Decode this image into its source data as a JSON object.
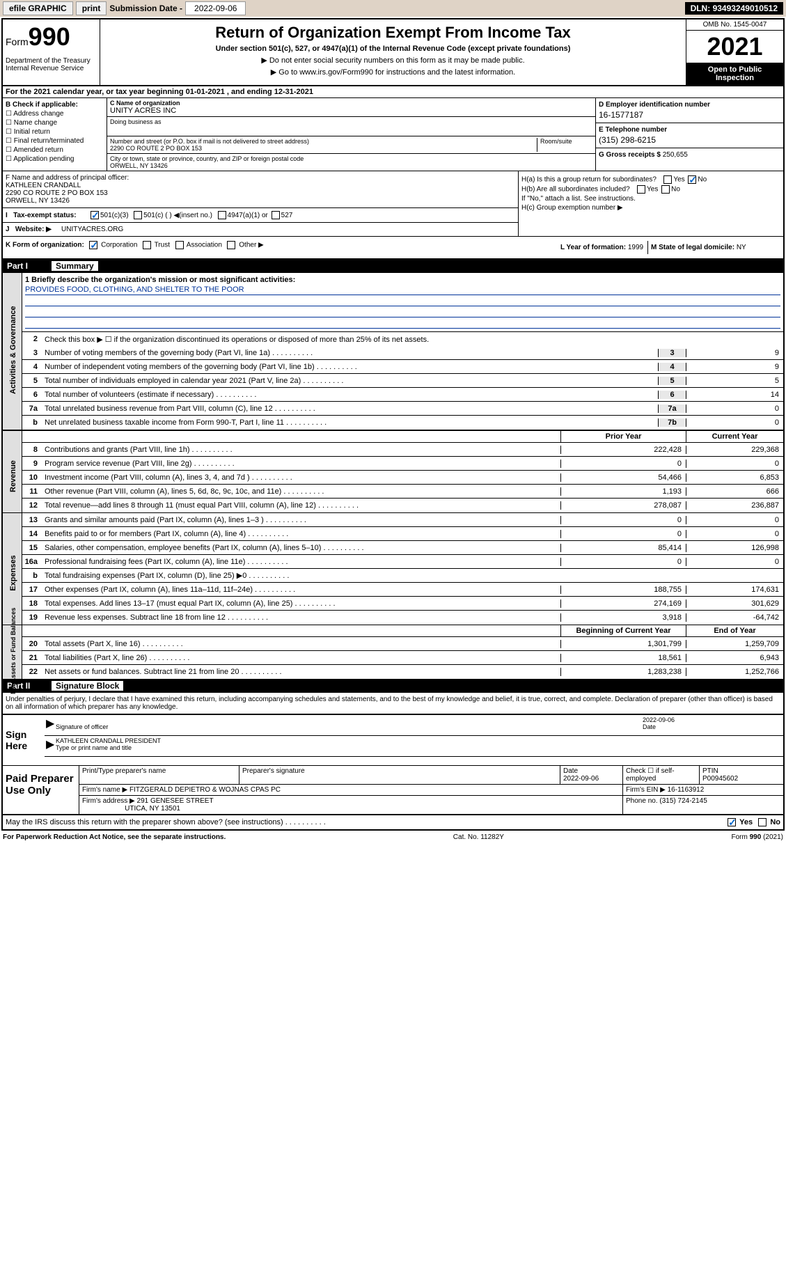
{
  "topbar": {
    "efile": "efile GRAPHIC",
    "print": "print",
    "sub_label": "Submission Date - ",
    "sub_date": "2022-09-06",
    "dln_label": "DLN: ",
    "dln": "93493249010512"
  },
  "header": {
    "form": "Form",
    "form_num": "990",
    "dept": "Department of the Treasury\nInternal Revenue Service",
    "title": "Return of Organization Exempt From Income Tax",
    "sub1": "Under section 501(c), 527, or 4947(a)(1) of the Internal Revenue Code (except private foundations)",
    "sub2": "▶ Do not enter social security numbers on this form as it may be made public.",
    "sub3": "▶ Go to www.irs.gov/Form990 for instructions and the latest information.",
    "omb": "OMB No. 1545-0047",
    "year": "2021",
    "open": "Open to Public Inspection"
  },
  "sectionA": "For the 2021 calendar year, or tax year beginning 01-01-2021    , and ending 12-31-2021",
  "blockB": {
    "label": "B Check if applicable:",
    "opts": [
      "Address change",
      "Name change",
      "Initial return",
      "Final return/terminated",
      "Amended return",
      "Application pending"
    ]
  },
  "blockC": {
    "name_label": "C Name of organization",
    "name": "UNITY ACRES INC",
    "dba_label": "Doing business as",
    "street_label": "Number and street (or P.O. box if mail is not delivered to street address)",
    "street": "2290 CO ROUTE 2 PO BOX 153",
    "room_label": "Room/suite",
    "city_label": "City or town, state or province, country, and ZIP or foreign postal code",
    "city": "ORWELL, NY  13426"
  },
  "blockD": {
    "ein_label": "D Employer identification number",
    "ein": "16-1577187",
    "phone_label": "E Telephone number",
    "phone": "(315) 298-6215",
    "gross_label": "G Gross receipts $",
    "gross": "250,655"
  },
  "blockF": {
    "label": "F  Name and address of principal officer:",
    "name": "KATHLEEN CRANDALL",
    "addr1": "2290 CO ROUTE 2 PO BOX 153",
    "addr2": "ORWELL, NY  13426"
  },
  "blockH": {
    "a_label": "H(a)  Is this a group return for subordinates?",
    "b_label": "H(b)  Are all subordinates included?",
    "note": "If \"No,\" attach a list. See instructions.",
    "c_label": "H(c)  Group exemption number ▶"
  },
  "blockI": {
    "label": "Tax-exempt status:",
    "opts": [
      "501(c)(3)",
      "501(c) (  ) ◀(insert no.)",
      "4947(a)(1) or",
      "527"
    ]
  },
  "blockJ": {
    "label": "Website: ▶",
    "val": "UNITYACRES.ORG"
  },
  "blockK": {
    "label": "K Form of organization:",
    "opts": [
      "Corporation",
      "Trust",
      "Association",
      "Other ▶"
    ]
  },
  "blockL": {
    "label": "L Year of formation:",
    "val": "1999"
  },
  "blockM": {
    "label": "M State of legal domicile:",
    "val": "NY"
  },
  "part1": {
    "num": "Part I",
    "title": "Summary",
    "briefly_label": "1  Briefly describe the organization's mission or most significant activities:",
    "mission": "PROVIDES FOOD, CLOTHING, AND SHELTER TO THE POOR",
    "line2": "Check this box ▶ ☐  if the organization discontinued its operations or disposed of more than 25% of its net assets.",
    "governance": [
      {
        "n": "3",
        "desc": "Number of voting members of the governing body (Part VI, line 1a)",
        "cell": "3",
        "val": "9"
      },
      {
        "n": "4",
        "desc": "Number of independent voting members of the governing body (Part VI, line 1b)",
        "cell": "4",
        "val": "9"
      },
      {
        "n": "5",
        "desc": "Total number of individuals employed in calendar year 2021 (Part V, line 2a)",
        "cell": "5",
        "val": "5"
      },
      {
        "n": "6",
        "desc": "Total number of volunteers (estimate if necessary)",
        "cell": "6",
        "val": "14"
      },
      {
        "n": "7a",
        "desc": "Total unrelated business revenue from Part VIII, column (C), line 12",
        "cell": "7a",
        "val": "0"
      },
      {
        "n": "b",
        "desc": "Net unrelated business taxable income from Form 990-T, Part I, line 11",
        "cell": "7b",
        "val": "0"
      }
    ],
    "col_prior": "Prior Year",
    "col_current": "Current Year",
    "revenue": [
      {
        "n": "8",
        "desc": "Contributions and grants (Part VIII, line 1h)",
        "prior": "222,428",
        "curr": "229,368"
      },
      {
        "n": "9",
        "desc": "Program service revenue (Part VIII, line 2g)",
        "prior": "0",
        "curr": "0"
      },
      {
        "n": "10",
        "desc": "Investment income (Part VIII, column (A), lines 3, 4, and 7d )",
        "prior": "54,466",
        "curr": "6,853"
      },
      {
        "n": "11",
        "desc": "Other revenue (Part VIII, column (A), lines 5, 6d, 8c, 9c, 10c, and 11e)",
        "prior": "1,193",
        "curr": "666"
      },
      {
        "n": "12",
        "desc": "Total revenue—add lines 8 through 11 (must equal Part VIII, column (A), line 12)",
        "prior": "278,087",
        "curr": "236,887"
      }
    ],
    "expenses": [
      {
        "n": "13",
        "desc": "Grants and similar amounts paid (Part IX, column (A), lines 1–3 )",
        "prior": "0",
        "curr": "0"
      },
      {
        "n": "14",
        "desc": "Benefits paid to or for members (Part IX, column (A), line 4)",
        "prior": "0",
        "curr": "0"
      },
      {
        "n": "15",
        "desc": "Salaries, other compensation, employee benefits (Part IX, column (A), lines 5–10)",
        "prior": "85,414",
        "curr": "126,998"
      },
      {
        "n": "16a",
        "desc": "Professional fundraising fees (Part IX, column (A), line 11e)",
        "prior": "0",
        "curr": "0"
      },
      {
        "n": "b",
        "desc": "Total fundraising expenses (Part IX, column (D), line 25) ▶0",
        "prior": "",
        "curr": ""
      },
      {
        "n": "17",
        "desc": "Other expenses (Part IX, column (A), lines 11a–11d, 11f–24e)",
        "prior": "188,755",
        "curr": "174,631"
      },
      {
        "n": "18",
        "desc": "Total expenses. Add lines 13–17 (must equal Part IX, column (A), line 25)",
        "prior": "274,169",
        "curr": "301,629"
      },
      {
        "n": "19",
        "desc": "Revenue less expenses. Subtract line 18 from line 12",
        "prior": "3,918",
        "curr": "-64,742"
      }
    ],
    "col_begin": "Beginning of Current Year",
    "col_end": "End of Year",
    "netassets": [
      {
        "n": "20",
        "desc": "Total assets (Part X, line 16)",
        "prior": "1,301,799",
        "curr": "1,259,709"
      },
      {
        "n": "21",
        "desc": "Total liabilities (Part X, line 26)",
        "prior": "18,561",
        "curr": "6,943"
      },
      {
        "n": "22",
        "desc": "Net assets or fund balances. Subtract line 21 from line 20",
        "prior": "1,283,238",
        "curr": "1,252,766"
      }
    ]
  },
  "part2": {
    "num": "Part II",
    "title": "Signature Block",
    "decl": "Under penalties of perjury, I declare that I have examined this return, including accompanying schedules and statements, and to the best of my knowledge and belief, it is true, correct, and complete. Declaration of preparer (other than officer) is based on all information of which preparer has any knowledge.",
    "sign_here": "Sign Here",
    "sig_label": "Signature of officer",
    "date_label": "Date",
    "sig_date": "2022-09-06",
    "officer": "KATHLEEN CRANDALL  PRESIDENT",
    "officer_label": "Type or print name and title",
    "paid": "Paid Preparer Use Only",
    "prep_name_label": "Print/Type preparer's name",
    "prep_sig_label": "Preparer's signature",
    "prep_date_label": "Date",
    "prep_date": "2022-09-06",
    "check_label": "Check ☐ if self-employed",
    "ptin_label": "PTIN",
    "ptin": "P00945602",
    "firm_name_label": "Firm's name   ▶",
    "firm_name": "FITZGERALD DEPIETRO & WOJNAS CPAS PC",
    "firm_ein_label": "Firm's EIN ▶",
    "firm_ein": "16-1163912",
    "firm_addr_label": "Firm's address ▶",
    "firm_addr1": "291 GENESEE STREET",
    "firm_addr2": "UTICA, NY  13501",
    "firm_phone_label": "Phone no.",
    "firm_phone": "(315) 724-2145",
    "may": "May the IRS discuss this return with the preparer shown above? (see instructions)",
    "yes": "Yes",
    "no": "No"
  },
  "footer": {
    "left": "For Paperwork Reduction Act Notice, see the separate instructions.",
    "center": "Cat. No. 11282Y",
    "right": "Form 990 (2021)"
  },
  "vlabels": {
    "gov": "Activities & Governance",
    "rev": "Revenue",
    "exp": "Expenses",
    "net": "Net Assets or Fund Balances"
  }
}
